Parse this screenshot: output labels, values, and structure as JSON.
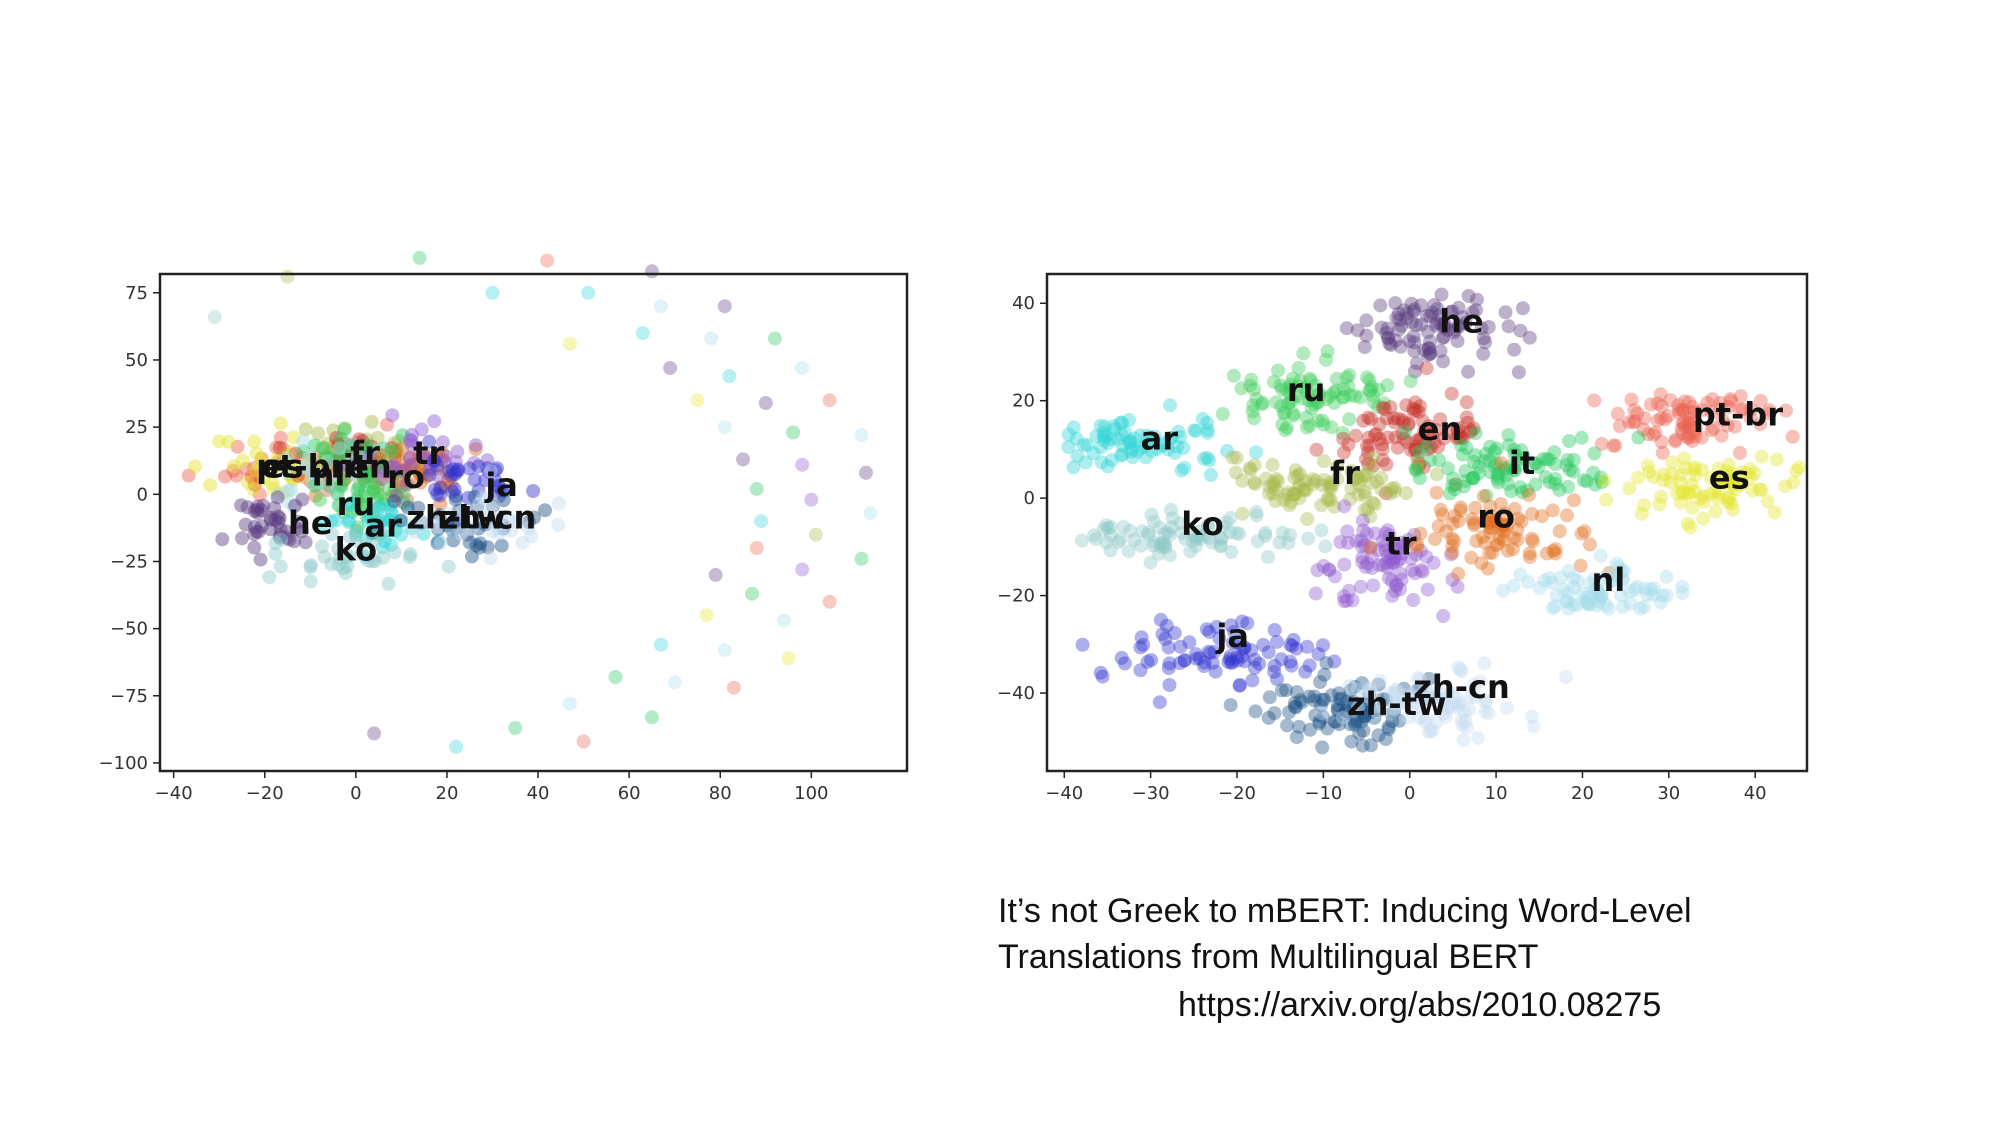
{
  "colors": {
    "ar": "#2fd5d8",
    "ru": "#3ccc5a",
    "he": "#5b3c80",
    "en": "#c9332a",
    "fr": "#a7b84a",
    "it": "#22c95c",
    "pt-br": "#ec6250",
    "es": "#e4e52a",
    "ko": "#8fc9c9",
    "tr": "#8e5ad0",
    "ro": "#e06d1f",
    "nl": "#a6dcea",
    "ja": "#3134cf",
    "zh-tw": "#1c4f85",
    "zh-cn": "#c6dcef"
  },
  "chart_data": [
    {
      "type": "scatter",
      "title": "",
      "xlabel": "",
      "ylabel": "",
      "xlim": [
        -43,
        121
      ],
      "ylim": [
        -103,
        82
      ],
      "xticks": [
        -40,
        -20,
        0,
        20,
        40,
        60,
        80,
        100
      ],
      "yticks": [
        -100,
        -75,
        -50,
        -25,
        0,
        25,
        50,
        75
      ],
      "grid": false,
      "clusters": [
        {
          "label": "pt-br",
          "center": [
            -14,
            12
          ],
          "spread": [
            9,
            7
          ],
          "n": 40
        },
        {
          "label": "es",
          "center": [
            -18,
            10
          ],
          "spread": [
            7,
            6
          ],
          "n": 35
        },
        {
          "label": "fr",
          "center": [
            -1,
            15
          ],
          "spread": [
            7,
            6
          ],
          "n": 35
        },
        {
          "label": "en",
          "center": [
            3,
            12
          ],
          "spread": [
            7,
            6
          ],
          "n": 35
        },
        {
          "label": "it",
          "center": [
            1,
            13
          ],
          "spread": [
            7,
            6
          ],
          "n": 35
        },
        {
          "label": "nl",
          "center": [
            -6,
            10
          ],
          "spread": [
            7,
            6
          ],
          "n": 35
        },
        {
          "label": "ro",
          "center": [
            10,
            8
          ],
          "spread": [
            7,
            5
          ],
          "n": 40
        },
        {
          "label": "tr",
          "center": [
            14,
            14
          ],
          "spread": [
            7,
            6
          ],
          "n": 35
        },
        {
          "label": "ja",
          "center": [
            25,
            5
          ],
          "spread": [
            5,
            5
          ],
          "n": 35
        },
        {
          "label": "he",
          "center": [
            -18,
            -12
          ],
          "spread": [
            5,
            6
          ],
          "n": 40
        },
        {
          "label": "ru",
          "center": [
            0,
            0
          ],
          "spread": [
            6,
            6
          ],
          "n": 35
        },
        {
          "label": "ar",
          "center": [
            5,
            -10
          ],
          "spread": [
            6,
            6
          ],
          "n": 35
        },
        {
          "label": "zh-tw",
          "center": [
            22,
            -10
          ],
          "spread": [
            7,
            6
          ],
          "n": 35
        },
        {
          "label": "zh-cn",
          "center": [
            28,
            -10
          ],
          "spread": [
            7,
            6
          ],
          "n": 35
        },
        {
          "label": "ko",
          "center": [
            -2,
            -22
          ],
          "spread": [
            8,
            5
          ],
          "n": 35
        }
      ],
      "scattered_points": [
        {
          "x": -31,
          "y": 66,
          "label": "ko"
        },
        {
          "x": -15,
          "y": 81,
          "label": "fr"
        },
        {
          "x": 14,
          "y": 88,
          "label": "it"
        },
        {
          "x": 30,
          "y": 75,
          "label": "ar"
        },
        {
          "x": 42,
          "y": 87,
          "label": "pt-br"
        },
        {
          "x": 51,
          "y": 75,
          "label": "ar"
        },
        {
          "x": 65,
          "y": 83,
          "label": "he"
        },
        {
          "x": 67,
          "y": 70,
          "label": "nl"
        },
        {
          "x": 81,
          "y": 70,
          "label": "he"
        },
        {
          "x": 47,
          "y": 56,
          "label": "es"
        },
        {
          "x": 63,
          "y": 60,
          "label": "ar"
        },
        {
          "x": 69,
          "y": 47,
          "label": "he"
        },
        {
          "x": 78,
          "y": 58,
          "label": "nl"
        },
        {
          "x": 92,
          "y": 58,
          "label": "it"
        },
        {
          "x": 98,
          "y": 47,
          "label": "nl"
        },
        {
          "x": 82,
          "y": 44,
          "label": "ar"
        },
        {
          "x": 75,
          "y": 35,
          "label": "es"
        },
        {
          "x": 90,
          "y": 34,
          "label": "he"
        },
        {
          "x": 104,
          "y": 35,
          "label": "pt-br"
        },
        {
          "x": 81,
          "y": 25,
          "label": "nl"
        },
        {
          "x": 96,
          "y": 23,
          "label": "it"
        },
        {
          "x": 111,
          "y": 22,
          "label": "nl"
        },
        {
          "x": 85,
          "y": 13,
          "label": "he"
        },
        {
          "x": 98,
          "y": 11,
          "label": "tr"
        },
        {
          "x": 112,
          "y": 8,
          "label": "he"
        },
        {
          "x": 88,
          "y": 2,
          "label": "it"
        },
        {
          "x": 100,
          "y": -2,
          "label": "tr"
        },
        {
          "x": 113,
          "y": -7,
          "label": "nl"
        },
        {
          "x": 89,
          "y": -10,
          "label": "ar"
        },
        {
          "x": 101,
          "y": -15,
          "label": "fr"
        },
        {
          "x": 88,
          "y": -20,
          "label": "pt-br"
        },
        {
          "x": 111,
          "y": -24,
          "label": "it"
        },
        {
          "x": 79,
          "y": -30,
          "label": "he"
        },
        {
          "x": 98,
          "y": -28,
          "label": "tr"
        },
        {
          "x": 87,
          "y": -37,
          "label": "it"
        },
        {
          "x": 104,
          "y": -40,
          "label": "pt-br"
        },
        {
          "x": 77,
          "y": -45,
          "label": "es"
        },
        {
          "x": 94,
          "y": -47,
          "label": "nl"
        },
        {
          "x": 67,
          "y": -56,
          "label": "ar"
        },
        {
          "x": 81,
          "y": -58,
          "label": "nl"
        },
        {
          "x": 95,
          "y": -61,
          "label": "es"
        },
        {
          "x": 57,
          "y": -68,
          "label": "it"
        },
        {
          "x": 70,
          "y": -70,
          "label": "nl"
        },
        {
          "x": 83,
          "y": -72,
          "label": "pt-br"
        },
        {
          "x": 47,
          "y": -78,
          "label": "nl"
        },
        {
          "x": 65,
          "y": -83,
          "label": "it"
        },
        {
          "x": 35,
          "y": -87,
          "label": "it"
        },
        {
          "x": 50,
          "y": -92,
          "label": "pt-br"
        },
        {
          "x": 4,
          "y": -89,
          "label": "he"
        },
        {
          "x": 22,
          "y": -94,
          "label": "ar"
        }
      ],
      "labels": [
        {
          "text": "pt-br",
          "x": -12,
          "y": 10
        },
        {
          "text": "fr",
          "x": 2,
          "y": 15
        },
        {
          "text": "tr",
          "x": 16,
          "y": 15
        },
        {
          "text": "es",
          "x": -16,
          "y": 10
        },
        {
          "text": "nl",
          "x": -6,
          "y": 7
        },
        {
          "text": "en",
          "x": 3,
          "y": 10
        },
        {
          "text": "it",
          "x": 0,
          "y": 10
        },
        {
          "text": "ro",
          "x": 11,
          "y": 6
        },
        {
          "text": "ja",
          "x": 32,
          "y": 3
        },
        {
          "text": "he",
          "x": -10,
          "y": -11
        },
        {
          "text": "ru",
          "x": 0,
          "y": -4
        },
        {
          "text": "ar",
          "x": 6,
          "y": -12
        },
        {
          "text": "zh-tw",
          "x": 22,
          "y": -9
        },
        {
          "text": "zh-cn",
          "x": 29,
          "y": -9
        },
        {
          "text": "ko",
          "x": 0,
          "y": -21
        }
      ]
    },
    {
      "type": "scatter",
      "title": "",
      "xlabel": "",
      "ylabel": "",
      "xlim": [
        -42,
        46
      ],
      "ylim": [
        -56,
        46
      ],
      "xticks": [
        -40,
        -30,
        -20,
        -10,
        0,
        10,
        20,
        30,
        40
      ],
      "yticks": [
        -40,
        -20,
        0,
        20,
        40
      ],
      "grid": false,
      "clusters": [
        {
          "label": "he",
          "center": [
            2,
            35
          ],
          "spread": [
            4.5,
            3.5
          ],
          "n": 90
        },
        {
          "label": "ru",
          "center": [
            -13,
            21
          ],
          "spread": [
            5,
            3.5
          ],
          "n": 90
        },
        {
          "label": "ar",
          "center": [
            -32,
            11
          ],
          "spread": [
            5,
            2.5
          ],
          "n": 80
        },
        {
          "label": "en",
          "center": [
            0,
            13
          ],
          "spread": [
            4,
            4
          ],
          "n": 90
        },
        {
          "label": "pt-br",
          "center": [
            33,
            16
          ],
          "spread": [
            5,
            3
          ],
          "n": 85
        },
        {
          "label": "fr",
          "center": [
            -10,
            3
          ],
          "spread": [
            6,
            3.5
          ],
          "n": 90
        },
        {
          "label": "it",
          "center": [
            12,
            6
          ],
          "spread": [
            6,
            3
          ],
          "n": 90
        },
        {
          "label": "es",
          "center": [
            35,
            3
          ],
          "spread": [
            5.5,
            3
          ],
          "n": 85
        },
        {
          "label": "ko",
          "center": [
            -26,
            -8
          ],
          "spread": [
            6,
            2
          ],
          "n": 80
        },
        {
          "label": "tr",
          "center": [
            -3,
            -13
          ],
          "spread": [
            3.5,
            4
          ],
          "n": 85
        },
        {
          "label": "ro",
          "center": [
            9,
            -7
          ],
          "spread": [
            5,
            3.5
          ],
          "n": 85
        },
        {
          "label": "nl",
          "center": [
            22,
            -19
          ],
          "spread": [
            5,
            2.5
          ],
          "n": 75
        },
        {
          "label": "ja",
          "center": [
            -23,
            -32
          ],
          "spread": [
            6,
            3
          ],
          "n": 85
        },
        {
          "label": "zh-tw",
          "center": [
            -7,
            -44
          ],
          "spread": [
            5,
            3.5
          ],
          "n": 90
        },
        {
          "label": "zh-cn",
          "center": [
            3,
            -42
          ],
          "spread": [
            6,
            3.5
          ],
          "n": 85
        }
      ],
      "labels": [
        {
          "text": "he",
          "x": 6,
          "y": 36
        },
        {
          "text": "ru",
          "x": -12,
          "y": 22
        },
        {
          "text": "ar",
          "x": -29,
          "y": 12
        },
        {
          "text": "en",
          "x": 3.5,
          "y": 14
        },
        {
          "text": "pt-br",
          "x": 38,
          "y": 17
        },
        {
          "text": "fr",
          "x": -7.5,
          "y": 5
        },
        {
          "text": "it",
          "x": 13,
          "y": 7
        },
        {
          "text": "es",
          "x": 37,
          "y": 4
        },
        {
          "text": "ko",
          "x": -24,
          "y": -5.5
        },
        {
          "text": "tr",
          "x": -1,
          "y": -9.5
        },
        {
          "text": "ro",
          "x": 10,
          "y": -4
        },
        {
          "text": "nl",
          "x": 23,
          "y": -17
        },
        {
          "text": "ja",
          "x": -20.5,
          "y": -28.5
        },
        {
          "text": "zh-tw",
          "x": -1.5,
          "y": -42.5
        },
        {
          "text": "zh-cn",
          "x": 6,
          "y": -39
        }
      ]
    }
  ],
  "caption": {
    "line1": "It’s not Greek to mBERT: Inducing Word-Level",
    "line2": "Translations from Multilingual BERT",
    "url": "https://arxiv.org/abs/2010.08275"
  }
}
